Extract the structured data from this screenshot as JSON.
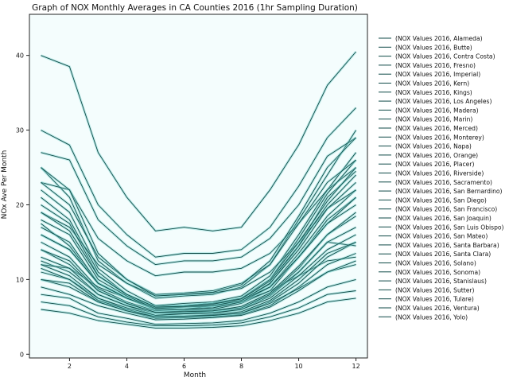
{
  "chart_data": {
    "type": "line",
    "title": "Graph of NOX Monthly Averages in CA Counties 2016 (1hr Sampling Duration)",
    "xlabel": "Month",
    "ylabel": "NOx Ave Per Month",
    "xlim": [
      0.6,
      12.4
    ],
    "ylim": [
      -0.5,
      45.5
    ],
    "x_ticks": [
      2,
      4,
      6,
      8,
      10,
      12
    ],
    "y_ticks": [
      0,
      10,
      20,
      30,
      40
    ],
    "legend_position": "right",
    "line_color": "#0f4a47",
    "x": [
      1,
      2,
      3,
      4,
      5,
      6,
      7,
      8,
      9,
      10,
      11,
      12
    ],
    "series": [
      {
        "name": "(NOX Values 2016, Alameda)",
        "values": [
          17.5,
          14.5,
          9.5,
          7.6,
          6.0,
          6.5,
          6.2,
          7.2,
          9.4,
          14.5,
          21.0,
          24.5
        ]
      },
      {
        "name": "(NOX Values 2016, Butte)",
        "values": [
          12.5,
          11.0,
          8.0,
          6.5,
          5.2,
          5.5,
          5.6,
          6.0,
          7.8,
          11.0,
          15.0,
          14.5
        ]
      },
      {
        "name": "(NOX Values 2016, Contra Costa)",
        "values": [
          15.0,
          13.0,
          8.8,
          7.0,
          5.8,
          6.0,
          6.0,
          6.8,
          8.5,
          13.0,
          18.0,
          21.0
        ]
      },
      {
        "name": "(NOX Values 2016, Fresno)",
        "values": [
          25.0,
          21.0,
          12.5,
          9.5,
          7.5,
          7.8,
          8.0,
          9.0,
          12.0,
          18.0,
          24.0,
          30.0
        ]
      },
      {
        "name": "(NOX Values 2016, Imperial)",
        "values": [
          12.0,
          11.5,
          9.0,
          7.5,
          6.5,
          6.5,
          6.8,
          7.0,
          8.5,
          10.5,
          12.5,
          13.0
        ]
      },
      {
        "name": "(NOX Values 2016, Kern)",
        "values": [
          22.0,
          19.0,
          11.5,
          8.5,
          6.5,
          6.8,
          7.0,
          7.8,
          10.5,
          16.0,
          22.0,
          27.0
        ]
      },
      {
        "name": "(NOX Values 2016, Kings)",
        "values": [
          16.0,
          14.0,
          9.5,
          7.5,
          6.0,
          6.0,
          6.5,
          7.0,
          9.0,
          13.0,
          17.5,
          21.0
        ]
      },
      {
        "name": "(NOX Values 2016, Los Angeles)",
        "values": [
          40.0,
          38.5,
          27.0,
          21.0,
          16.5,
          17.0,
          16.5,
          17.0,
          22.0,
          28.0,
          36.0,
          40.5
        ]
      },
      {
        "name": "(NOX Values 2016, Madera)",
        "values": [
          13.0,
          11.5,
          8.0,
          6.5,
          5.5,
          5.5,
          5.8,
          6.2,
          8.0,
          11.0,
          15.0,
          17.0
        ]
      },
      {
        "name": "(NOX Values 2016, Marin)",
        "values": [
          14.0,
          12.0,
          8.5,
          6.8,
          5.6,
          5.8,
          5.8,
          6.2,
          8.0,
          11.5,
          16.0,
          18.5
        ]
      },
      {
        "name": "(NOX Values 2016, Merced)",
        "values": [
          17.0,
          15.0,
          9.5,
          7.5,
          6.0,
          6.0,
          6.2,
          7.0,
          9.0,
          13.5,
          18.5,
          22.0
        ]
      },
      {
        "name": "(NOX Values 2016, Monterey)",
        "values": [
          6.0,
          5.5,
          4.5,
          4.0,
          3.5,
          3.5,
          3.6,
          3.8,
          4.5,
          5.5,
          7.0,
          7.5
        ]
      },
      {
        "name": "(NOX Values 2016, Napa)",
        "values": [
          11.0,
          10.0,
          7.5,
          6.0,
          5.0,
          5.0,
          5.2,
          5.5,
          7.0,
          9.5,
          13.0,
          15.0
        ]
      },
      {
        "name": "(NOX Values 2016, Orange)",
        "values": [
          30.0,
          28.0,
          20.0,
          16.0,
          13.0,
          13.5,
          13.5,
          14.0,
          17.0,
          22.5,
          29.0,
          33.0
        ]
      },
      {
        "name": "(NOX Values 2016, Placer)",
        "values": [
          12.0,
          10.5,
          7.5,
          6.2,
          5.2,
          5.4,
          5.5,
          6.0,
          7.5,
          10.5,
          14.0,
          16.0
        ]
      },
      {
        "name": "(NOX Values 2016, Riverside)",
        "values": [
          23.0,
          22.0,
          15.5,
          12.5,
          10.5,
          11.0,
          11.0,
          11.5,
          13.5,
          17.5,
          22.0,
          25.0
        ]
      },
      {
        "name": "(NOX Values 2016, Sacramento)",
        "values": [
          21.0,
          18.0,
          11.0,
          8.0,
          6.2,
          6.5,
          6.8,
          7.5,
          10.0,
          15.5,
          21.5,
          26.0
        ]
      },
      {
        "name": "(NOX Values 2016, San Bernardino)",
        "values": [
          27.0,
          26.0,
          18.0,
          14.5,
          12.0,
          12.5,
          12.5,
          13.0,
          15.5,
          20.0,
          26.5,
          29.0
        ]
      },
      {
        "name": "(NOX Values 2016, San Diego)",
        "values": [
          19.0,
          17.0,
          12.0,
          9.5,
          7.8,
          8.0,
          8.2,
          8.8,
          11.0,
          15.0,
          19.5,
          22.0
        ]
      },
      {
        "name": "(NOX Values 2016, San Francisco)",
        "values": [
          23.0,
          20.0,
          13.0,
          10.0,
          8.0,
          8.2,
          8.5,
          9.5,
          12.0,
          17.5,
          23.0,
          26.0
        ]
      },
      {
        "name": "(NOX Values 2016, San Joaquin)",
        "values": [
          20.0,
          17.5,
          10.5,
          8.0,
          6.3,
          6.5,
          6.8,
          7.5,
          10.0,
          15.0,
          20.5,
          25.0
        ]
      },
      {
        "name": "(NOX Values 2016, San Luis Obispo)",
        "values": [
          7.0,
          6.5,
          5.0,
          4.3,
          3.8,
          3.8,
          3.9,
          4.2,
          5.0,
          6.2,
          8.0,
          8.5
        ]
      },
      {
        "name": "(NOX Values 2016, San Mateo)",
        "values": [
          16.0,
          14.0,
          9.5,
          7.5,
          6.2,
          6.4,
          6.5,
          7.2,
          9.0,
          13.0,
          17.5,
          20.0
        ]
      },
      {
        "name": "(NOX Values 2016, Santa Barbara)",
        "values": [
          8.0,
          7.5,
          5.5,
          4.8,
          4.0,
          4.1,
          4.2,
          4.5,
          5.5,
          7.0,
          9.0,
          10.0
        ]
      },
      {
        "name": "(NOX Values 2016, Santa Clara)",
        "values": [
          25.0,
          22.0,
          13.5,
          10.0,
          7.8,
          8.0,
          8.3,
          9.3,
          12.5,
          18.5,
          25.0,
          29.0
        ]
      },
      {
        "name": "(NOX Values 2016, Solano)",
        "values": [
          14.0,
          12.5,
          8.5,
          6.8,
          5.6,
          5.7,
          5.8,
          6.4,
          8.2,
          11.8,
          16.0,
          19.0
        ]
      },
      {
        "name": "(NOX Values 2016, Sonoma)",
        "values": [
          10.0,
          9.0,
          7.0,
          5.8,
          4.8,
          4.9,
          5.0,
          5.3,
          6.5,
          9.0,
          12.0,
          13.5
        ]
      },
      {
        "name": "(NOX Values 2016, Stanislaus)",
        "values": [
          18.0,
          16.0,
          10.0,
          7.8,
          6.1,
          6.3,
          6.5,
          7.2,
          9.5,
          14.0,
          19.5,
          23.0
        ]
      },
      {
        "name": "(NOX Values 2016, Sutter)",
        "values": [
          11.5,
          10.0,
          7.2,
          6.0,
          5.0,
          5.1,
          5.3,
          5.7,
          7.2,
          10.0,
          13.5,
          15.0
        ]
      },
      {
        "name": "(NOX Values 2016, Tulare)",
        "values": [
          19.0,
          16.5,
          10.5,
          8.0,
          6.3,
          6.4,
          6.7,
          7.4,
          9.8,
          14.5,
          20.0,
          24.0
        ]
      },
      {
        "name": "(NOX Values 2016, Ventura)",
        "values": [
          10.0,
          9.5,
          7.0,
          5.8,
          5.0,
          5.1,
          5.2,
          5.5,
          6.8,
          8.8,
          11.0,
          12.0
        ]
      },
      {
        "name": "(NOX Values 2016, Yolo)",
        "values": [
          9.0,
          8.0,
          6.5,
          5.5,
          4.6,
          4.7,
          4.9,
          5.2,
          6.3,
          8.5,
          11.0,
          12.5
        ]
      }
    ]
  }
}
